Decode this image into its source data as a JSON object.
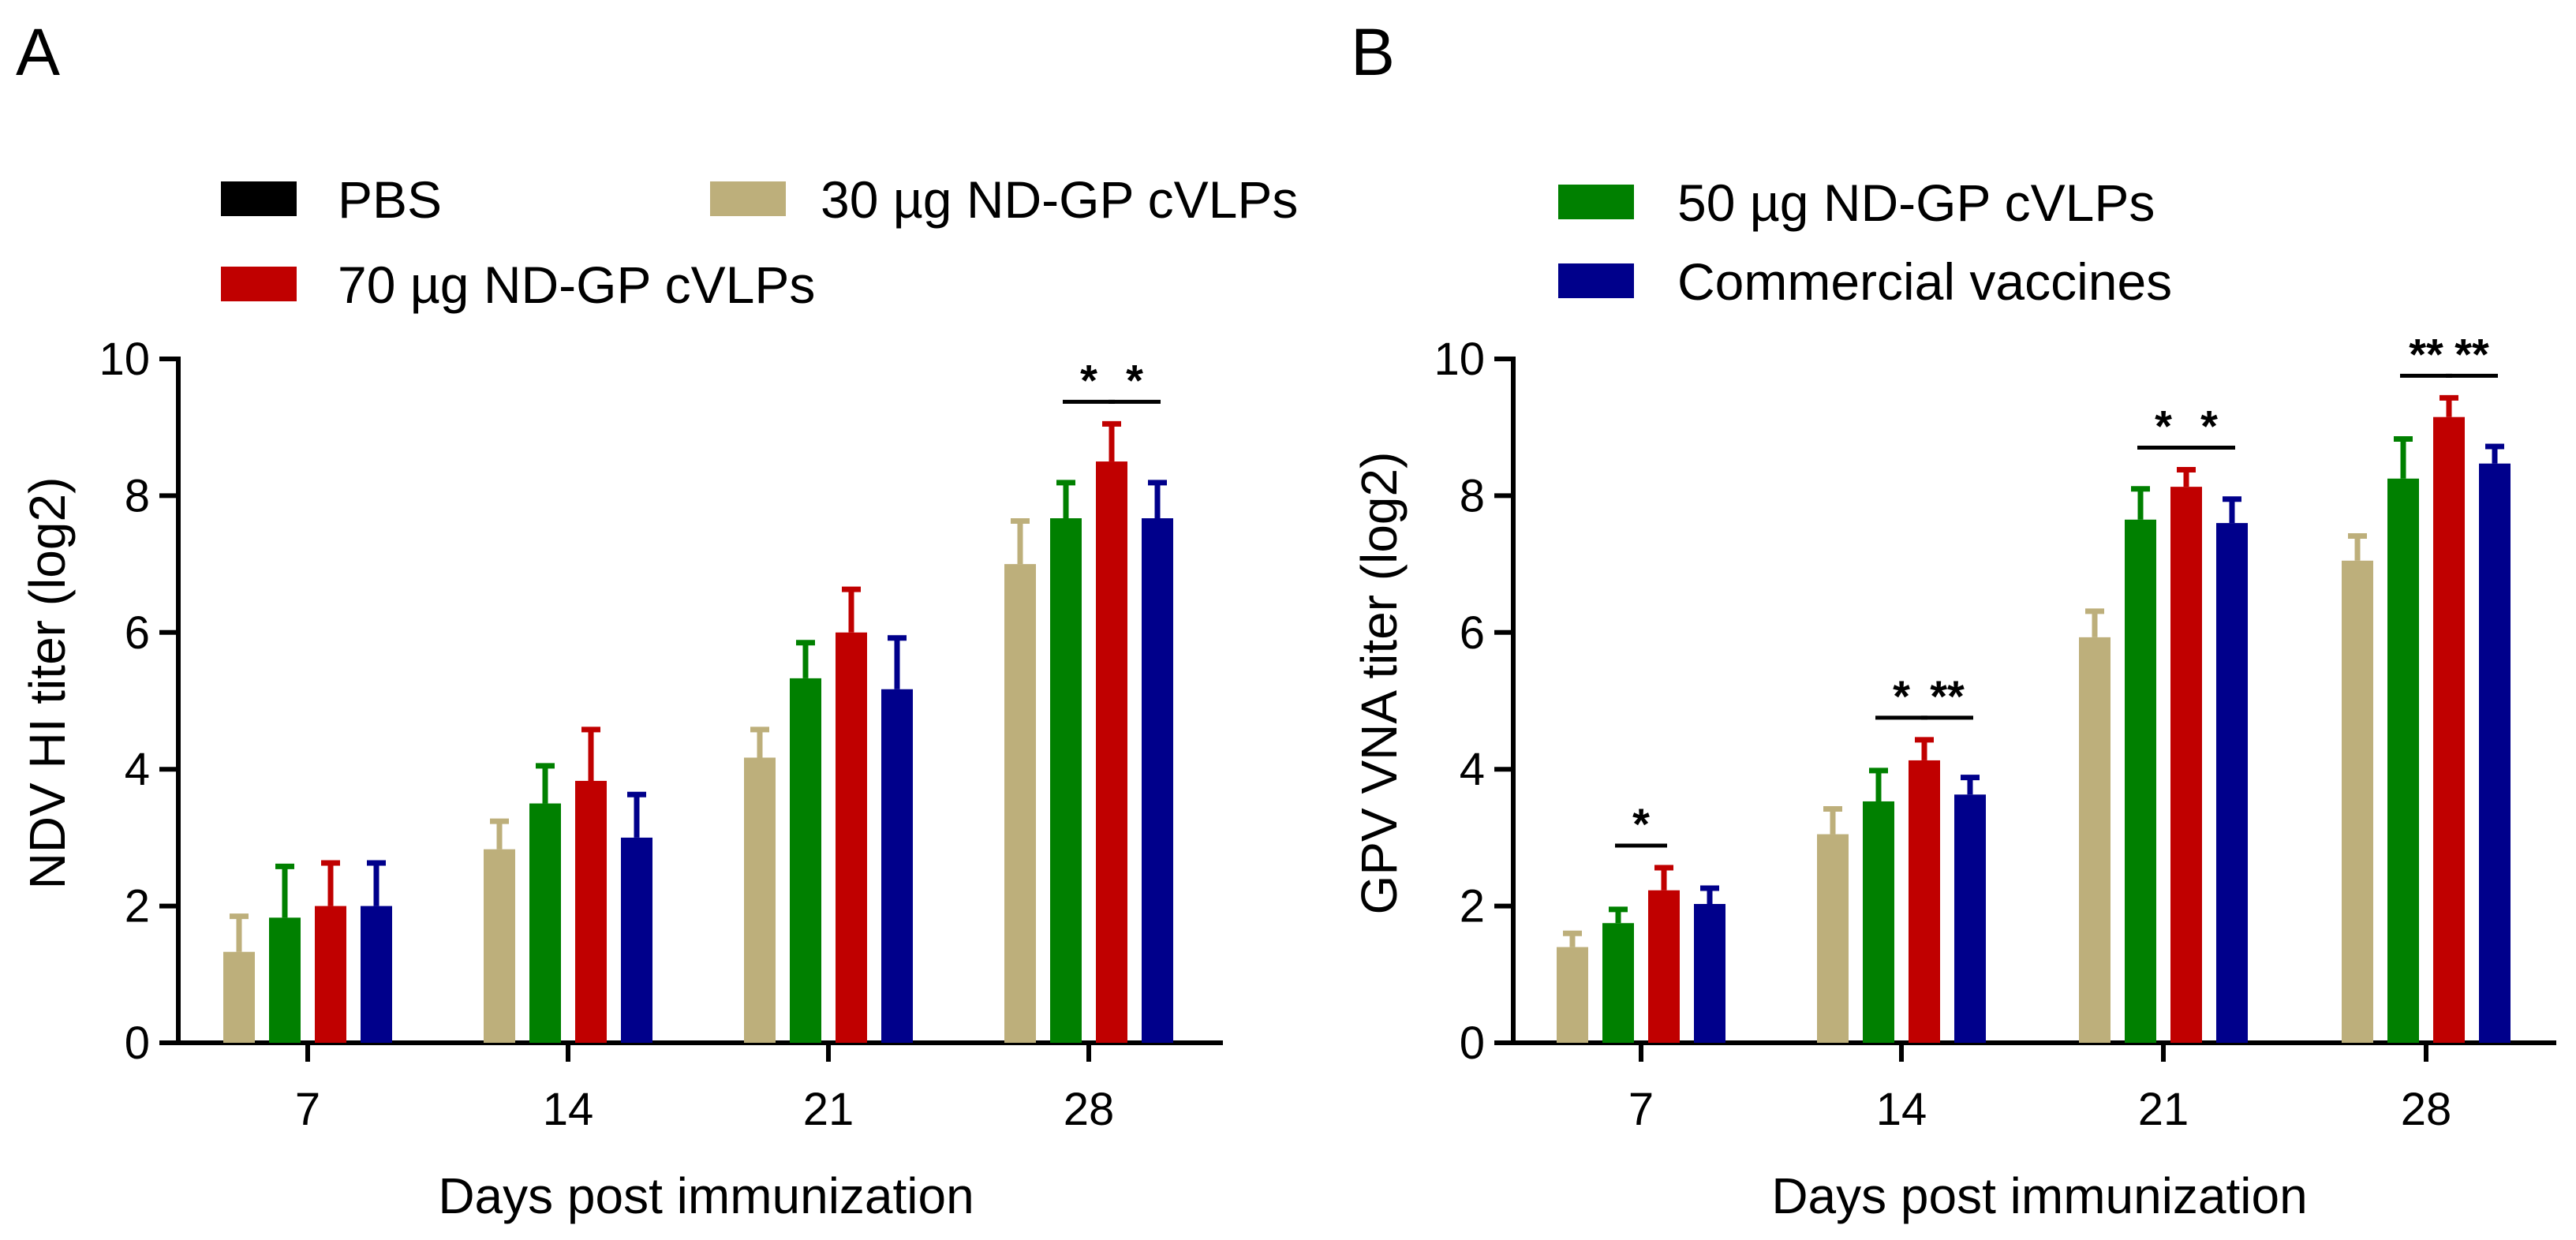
{
  "colors": {
    "PBS": "#000000",
    "30 µg ND-GP cVLPs": "#BDAF7B",
    "50 µg ND-GP cVLPs": "#008000",
    "70 µg ND-GP cVLPs": "#C00000",
    "Commercial vaccines": "#00008B"
  },
  "legend": {
    "items": [
      {
        "label": "PBS",
        "color": "#000000"
      },
      {
        "label": "30 µg ND-GP cVLPs",
        "color": "#BDAF7B"
      },
      {
        "label": "70 µg ND-GP cVLPs",
        "color": "#C00000"
      },
      {
        "label": "50 µg ND-GP cVLPs",
        "color": "#008000"
      },
      {
        "label": "Commercial vaccines",
        "color": "#00008B"
      }
    ]
  },
  "chart_data": [
    {
      "panel": "A",
      "type": "bar",
      "xlabel": "Days post immunization",
      "ylabel": "NDV HI titer (log2)",
      "ylim": [
        0,
        10
      ],
      "yticks": [
        0,
        2,
        4,
        6,
        8,
        10
      ],
      "categories": [
        "7",
        "14",
        "21",
        "28"
      ],
      "series": [
        {
          "name": "PBS",
          "values": [
            0,
            0,
            0,
            0
          ],
          "errors": [
            0,
            0,
            0,
            0
          ]
        },
        {
          "name": "30 µg ND-GP cVLPs",
          "values": [
            1.33,
            2.83,
            4.17,
            7.0
          ],
          "errors": [
            0.52,
            0.41,
            0.41,
            0.63
          ]
        },
        {
          "name": "50 µg ND-GP cVLPs",
          "values": [
            1.83,
            3.5,
            5.33,
            7.67
          ],
          "errors": [
            0.75,
            0.55,
            0.52,
            0.52
          ]
        },
        {
          "name": "70 µg ND-GP cVLPs",
          "values": [
            2.0,
            3.83,
            6.0,
            8.5
          ],
          "errors": [
            0.63,
            0.75,
            0.63,
            0.55
          ]
        },
        {
          "name": "Commercial vaccines",
          "values": [
            2.0,
            3.0,
            5.17,
            7.67
          ],
          "errors": [
            0.63,
            0.63,
            0.75,
            0.52
          ]
        }
      ],
      "significance": [
        {
          "category": "28",
          "from": "50 µg ND-GP cVLPs",
          "to": "70 µg ND-GP cVLPs",
          "label": "*"
        },
        {
          "category": "28",
          "from": "70 µg ND-GP cVLPs",
          "to": "Commercial vaccines",
          "label": "*"
        }
      ]
    },
    {
      "panel": "B",
      "type": "bar",
      "xlabel": "Days post immunization",
      "ylabel": "GPV VNA titer (log2)",
      "ylim": [
        0,
        10
      ],
      "yticks": [
        0,
        2,
        4,
        6,
        8,
        10
      ],
      "categories": [
        "7",
        "14",
        "21",
        "28"
      ],
      "series": [
        {
          "name": "PBS",
          "values": [
            0,
            0,
            0,
            0
          ],
          "errors": [
            0,
            0,
            0,
            0
          ]
        },
        {
          "name": "30 µg ND-GP cVLPs",
          "values": [
            1.4,
            3.05,
            5.93,
            7.05
          ],
          "errors": [
            0.2,
            0.37,
            0.38,
            0.36
          ]
        },
        {
          "name": "50 µg ND-GP cVLPs",
          "values": [
            1.75,
            3.53,
            7.65,
            8.25
          ],
          "errors": [
            0.2,
            0.45,
            0.45,
            0.58
          ]
        },
        {
          "name": "70 µg ND-GP cVLPs",
          "values": [
            2.23,
            4.13,
            8.13,
            9.15
          ],
          "errors": [
            0.33,
            0.3,
            0.25,
            0.28
          ]
        },
        {
          "name": "Commercial vaccines",
          "values": [
            2.03,
            3.63,
            7.6,
            8.47
          ],
          "errors": [
            0.23,
            0.25,
            0.35,
            0.25
          ]
        }
      ],
      "significance": [
        {
          "category": "7",
          "from": "50 µg ND-GP cVLPs",
          "to": "70 µg ND-GP cVLPs",
          "label": "*"
        },
        {
          "category": "14",
          "from": "50 µg ND-GP cVLPs",
          "to": "70 µg ND-GP cVLPs",
          "label": "*"
        },
        {
          "category": "14",
          "from": "70 µg ND-GP cVLPs",
          "to": "Commercial vaccines",
          "label": "**"
        },
        {
          "category": "21",
          "from": "50 µg ND-GP cVLPs",
          "to": "70 µg ND-GP cVLPs",
          "label": "*"
        },
        {
          "category": "21",
          "from": "70 µg ND-GP cVLPs",
          "to": "Commercial vaccines",
          "label": "*"
        },
        {
          "category": "28",
          "from": "50 µg ND-GP cVLPs",
          "to": "70 µg ND-GP cVLPs",
          "label": "**"
        },
        {
          "category": "28",
          "from": "70 µg ND-GP cVLPs",
          "to": "Commercial vaccines",
          "label": "**"
        }
      ]
    }
  ]
}
